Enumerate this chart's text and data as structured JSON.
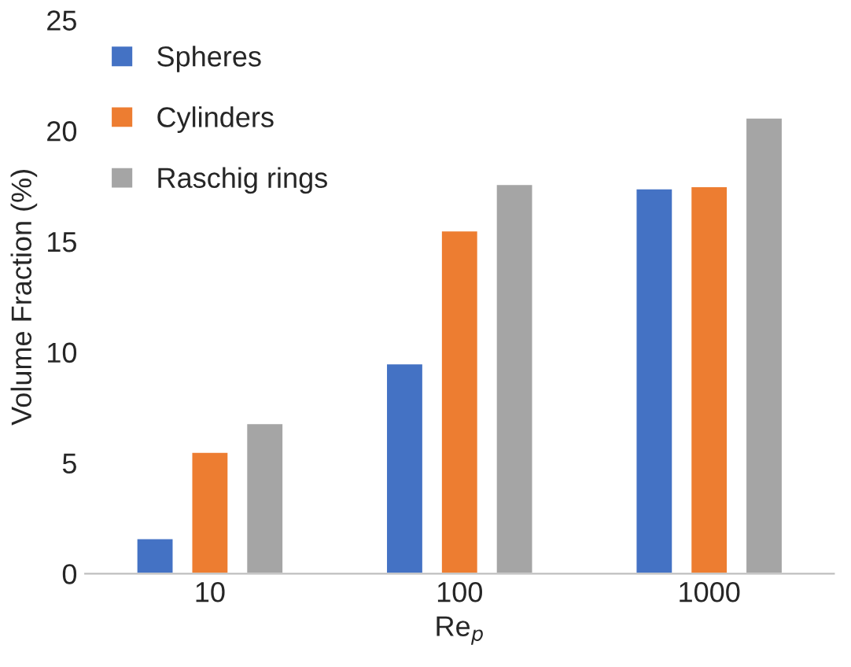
{
  "chart_data": {
    "type": "bar",
    "xlabel": "Re$_{p}$",
    "ylabel": "Volume Fraction (%)",
    "categories": [
      "10",
      "100",
      "1000"
    ],
    "series": [
      {
        "name": "Spheres",
        "color": "#4472c4",
        "values": [
          1.6,
          9.5,
          17.4
        ]
      },
      {
        "name": "Cylinders",
        "color": "#ed7d31",
        "values": [
          5.5,
          15.5,
          17.5
        ]
      },
      {
        "name": "Raschig rings",
        "color": "#a5a5a5",
        "values": [
          6.8,
          17.6,
          20.6
        ]
      }
    ],
    "ylim": [
      0,
      25
    ],
    "yticks": [
      0,
      5,
      10,
      15,
      20,
      25
    ],
    "grid": false,
    "legend": "top left"
  }
}
